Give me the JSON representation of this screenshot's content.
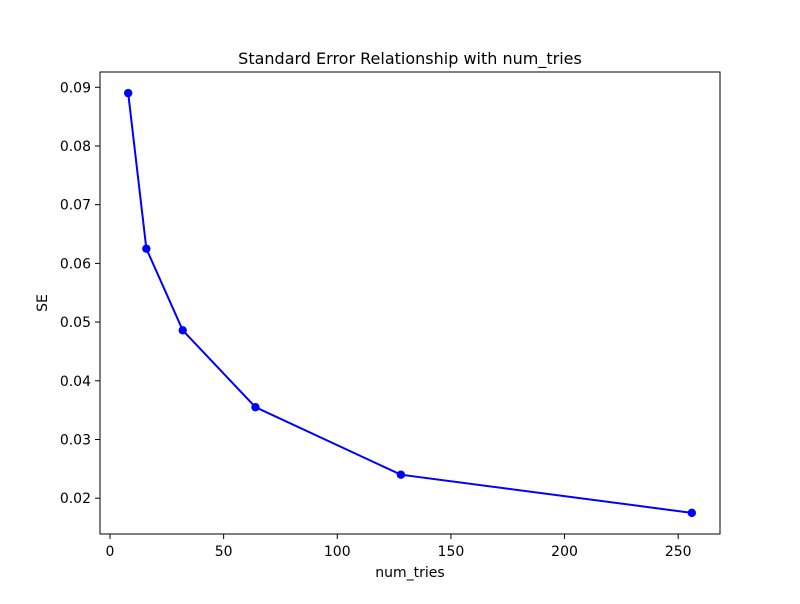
{
  "chart_data": {
    "type": "line",
    "title": "Standard Error Relationship with num_tries",
    "xlabel": "num_tries",
    "ylabel": "SE",
    "x": [
      8,
      16,
      32,
      64,
      128,
      256
    ],
    "y": [
      0.089,
      0.0625,
      0.0486,
      0.0355,
      0.024,
      0.0175
    ],
    "xlim": [
      -4.4,
      268.4
    ],
    "ylim": [
      0.0139,
      0.0926
    ],
    "xticks": [
      0,
      50,
      100,
      150,
      200,
      250
    ],
    "xtick_labels": [
      "0",
      "50",
      "100",
      "150",
      "200",
      "250"
    ],
    "yticks": [
      0.02,
      0.03,
      0.04,
      0.05,
      0.06,
      0.07,
      0.08,
      0.09
    ],
    "ytick_labels": [
      "0.02",
      "0.03",
      "0.04",
      "0.05",
      "0.06",
      "0.07",
      "0.08",
      "0.09"
    ],
    "line_color": "#0000ff",
    "marker": "o",
    "marker_radius": 4.2,
    "line_width": 2,
    "background_color": "#ffffff",
    "grid": false
  }
}
